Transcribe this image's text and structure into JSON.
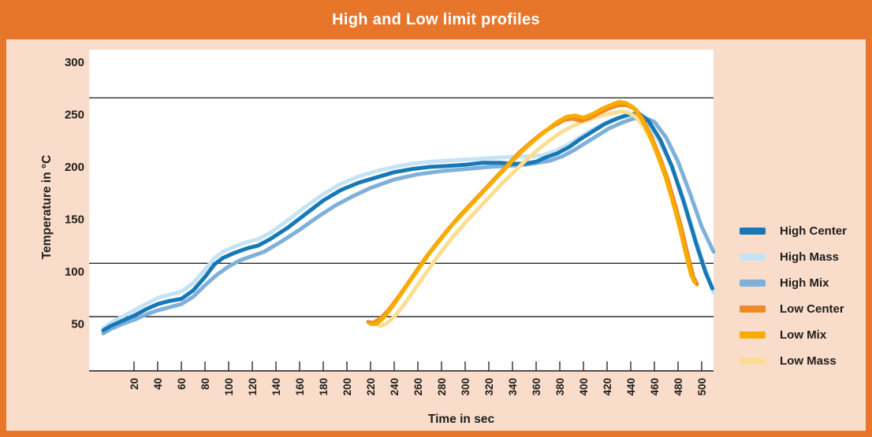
{
  "header": {
    "title": "High and Low limit profiles"
  },
  "colors": {
    "frame_orange": "#e7762b",
    "background_peach": "#fadccb",
    "plot_background": "#ffffff",
    "axis_line": "#1a1a1a",
    "text": "#1d1d1b",
    "title_text": "#ffffff"
  },
  "legend": {
    "items": [
      {
        "label": "High Center",
        "color": "#1778b6"
      },
      {
        "label": "High Mass",
        "color": "#c6e3f4"
      },
      {
        "label": "High Mix",
        "color": "#7fb0d9"
      },
      {
        "label": "Low Center",
        "color": "#f08a25"
      },
      {
        "label": "Low Mix",
        "color": "#f8ac00"
      },
      {
        "label": "Low Mass",
        "color": "#fbde92"
      }
    ]
  },
  "chart_data": {
    "type": "line",
    "title": "High and Low limit profiles",
    "xlabel": "Time in sec",
    "ylabel": "Temperature in °C",
    "x_ticks": [
      20,
      40,
      60,
      80,
      100,
      120,
      140,
      160,
      180,
      200,
      220,
      240,
      260,
      280,
      300,
      320,
      340,
      360,
      380,
      400,
      420,
      440,
      460,
      480,
      500
    ],
    "y_ticks": [
      50,
      100,
      150,
      200,
      250,
      300
    ],
    "xlim": [
      -18,
      510
    ],
    "ylim": [
      5,
      312
    ],
    "grid": "off",
    "legend_position": "right",
    "limit_lines": [
      266,
      108,
      57
    ],
    "series": [
      {
        "name": "High Mass",
        "color": "#c6e3f4",
        "points": [
          [
            -6,
            46
          ],
          [
            0,
            51
          ],
          [
            10,
            57
          ],
          [
            20,
            63
          ],
          [
            30,
            69
          ],
          [
            40,
            75
          ],
          [
            50,
            78
          ],
          [
            60,
            81
          ],
          [
            70,
            89
          ],
          [
            80,
            102
          ],
          [
            88,
            113
          ],
          [
            95,
            119
          ],
          [
            105,
            124
          ],
          [
            115,
            128
          ],
          [
            125,
            131
          ],
          [
            135,
            137
          ],
          [
            150,
            149
          ],
          [
            165,
            162
          ],
          [
            180,
            174
          ],
          [
            195,
            184
          ],
          [
            210,
            191
          ],
          [
            225,
            196
          ],
          [
            240,
            200
          ],
          [
            255,
            203
          ],
          [
            270,
            205
          ],
          [
            285,
            206
          ],
          [
            300,
            207
          ],
          [
            315,
            208
          ],
          [
            330,
            209
          ],
          [
            345,
            210
          ],
          [
            355,
            210
          ],
          [
            365,
            211
          ],
          [
            375,
            215
          ],
          [
            385,
            220
          ],
          [
            395,
            227
          ],
          [
            405,
            234
          ],
          [
            415,
            240
          ],
          [
            425,
            245
          ],
          [
            435,
            248
          ],
          [
            443,
            249
          ],
          [
            452,
            243
          ],
          [
            462,
            228
          ],
          [
            472,
            207
          ],
          [
            482,
            178
          ],
          [
            492,
            142
          ],
          [
            502,
            106
          ],
          [
            510,
            80
          ]
        ]
      },
      {
        "name": "High Mix",
        "color": "#7fb0d9",
        "points": [
          [
            -6,
            41
          ],
          [
            0,
            45
          ],
          [
            10,
            50
          ],
          [
            20,
            54
          ],
          [
            30,
            59
          ],
          [
            40,
            63
          ],
          [
            50,
            66
          ],
          [
            60,
            69
          ],
          [
            70,
            76
          ],
          [
            80,
            87
          ],
          [
            90,
            97
          ],
          [
            100,
            105
          ],
          [
            110,
            111
          ],
          [
            120,
            115
          ],
          [
            130,
            119
          ],
          [
            145,
            129
          ],
          [
            160,
            140
          ],
          [
            175,
            152
          ],
          [
            190,
            163
          ],
          [
            205,
            172
          ],
          [
            220,
            180
          ],
          [
            240,
            188
          ],
          [
            260,
            193
          ],
          [
            280,
            196
          ],
          [
            300,
            198
          ],
          [
            320,
            200
          ],
          [
            335,
            201
          ],
          [
            350,
            202
          ],
          [
            362,
            204
          ],
          [
            372,
            206
          ],
          [
            382,
            210
          ],
          [
            392,
            216
          ],
          [
            402,
            223
          ],
          [
            412,
            230
          ],
          [
            422,
            237
          ],
          [
            432,
            242
          ],
          [
            442,
            246
          ],
          [
            452,
            247
          ],
          [
            460,
            243
          ],
          [
            470,
            228
          ],
          [
            480,
            205
          ],
          [
            490,
            175
          ],
          [
            500,
            143
          ],
          [
            510,
            119
          ]
        ]
      },
      {
        "name": "High Center",
        "color": "#1778b6",
        "points": [
          [
            -6,
            44
          ],
          [
            0,
            48
          ],
          [
            10,
            53
          ],
          [
            20,
            58
          ],
          [
            30,
            64
          ],
          [
            40,
            69
          ],
          [
            50,
            72
          ],
          [
            60,
            74
          ],
          [
            70,
            82
          ],
          [
            80,
            95
          ],
          [
            88,
            107
          ],
          [
            95,
            113
          ],
          [
            105,
            118
          ],
          [
            115,
            122
          ],
          [
            125,
            125
          ],
          [
            135,
            131
          ],
          [
            150,
            142
          ],
          [
            165,
            155
          ],
          [
            180,
            168
          ],
          [
            195,
            178
          ],
          [
            210,
            185
          ],
          [
            225,
            190
          ],
          [
            240,
            195
          ],
          [
            255,
            198
          ],
          [
            270,
            200
          ],
          [
            285,
            201
          ],
          [
            300,
            202
          ],
          [
            315,
            204
          ],
          [
            330,
            204
          ],
          [
            340,
            203
          ],
          [
            350,
            203
          ],
          [
            360,
            205
          ],
          [
            368,
            209
          ],
          [
            378,
            213
          ],
          [
            388,
            219
          ],
          [
            398,
            227
          ],
          [
            408,
            234
          ],
          [
            418,
            241
          ],
          [
            428,
            246
          ],
          [
            438,
            250
          ],
          [
            447,
            251
          ],
          [
            455,
            244
          ],
          [
            465,
            226
          ],
          [
            475,
            200
          ],
          [
            485,
            166
          ],
          [
            495,
            128
          ],
          [
            503,
            100
          ],
          [
            509,
            84
          ]
        ]
      },
      {
        "name": "Low Mass",
        "color": "#fbde92",
        "points": [
          [
            228,
            48
          ],
          [
            233,
            50
          ],
          [
            240,
            57
          ],
          [
            248,
            68
          ],
          [
            256,
            81
          ],
          [
            264,
            94
          ],
          [
            272,
            107
          ],
          [
            281,
            121
          ],
          [
            291,
            135
          ],
          [
            301,
            148
          ],
          [
            311,
            160
          ],
          [
            321,
            172
          ],
          [
            331,
            184
          ],
          [
            341,
            195
          ],
          [
            351,
            206
          ],
          [
            361,
            216
          ],
          [
            371,
            225
          ],
          [
            381,
            233
          ],
          [
            391,
            239
          ],
          [
            399,
            243
          ],
          [
            407,
            246
          ],
          [
            415,
            249
          ],
          [
            423,
            251
          ],
          [
            431,
            253
          ],
          [
            438,
            252
          ],
          [
            444,
            248
          ],
          [
            450,
            240
          ],
          [
            457,
            226
          ],
          [
            464,
            207
          ],
          [
            471,
            185
          ],
          [
            477,
            162
          ],
          [
            483,
            137
          ],
          [
            488,
            114
          ],
          [
            492,
            97
          ]
        ]
      },
      {
        "name": "Low Center",
        "color": "#f08a25",
        "points": [
          [
            218,
            52
          ],
          [
            222,
            51
          ],
          [
            228,
            55
          ],
          [
            235,
            63
          ],
          [
            243,
            75
          ],
          [
            251,
            88
          ],
          [
            259,
            101
          ],
          [
            267,
            114
          ],
          [
            276,
            127
          ],
          [
            286,
            141
          ],
          [
            296,
            154
          ],
          [
            306,
            166
          ],
          [
            316,
            178
          ],
          [
            326,
            190
          ],
          [
            336,
            202
          ],
          [
            346,
            214
          ],
          [
            356,
            224
          ],
          [
            366,
            233
          ],
          [
            376,
            240
          ],
          [
            384,
            245
          ],
          [
            391,
            246
          ],
          [
            398,
            244
          ],
          [
            406,
            247
          ],
          [
            414,
            252
          ],
          [
            422,
            256
          ],
          [
            430,
            259
          ],
          [
            437,
            259
          ],
          [
            444,
            255
          ],
          [
            450,
            246
          ],
          [
            457,
            230
          ],
          [
            464,
            211
          ],
          [
            471,
            189
          ],
          [
            477,
            166
          ],
          [
            483,
            141
          ],
          [
            488,
            117
          ],
          [
            493,
            95
          ],
          [
            496,
            88
          ]
        ]
      },
      {
        "name": "Low Mix",
        "color": "#f8ac00",
        "points": [
          [
            220,
            50
          ],
          [
            225,
            50
          ],
          [
            231,
            56
          ],
          [
            238,
            66
          ],
          [
            246,
            79
          ],
          [
            254,
            92
          ],
          [
            262,
            105
          ],
          [
            270,
            118
          ],
          [
            280,
            132
          ],
          [
            290,
            146
          ],
          [
            300,
            158
          ],
          [
            310,
            170
          ],
          [
            320,
            182
          ],
          [
            330,
            194
          ],
          [
            340,
            206
          ],
          [
            350,
            217
          ],
          [
            360,
            227
          ],
          [
            370,
            236
          ],
          [
            378,
            243
          ],
          [
            386,
            248
          ],
          [
            393,
            249
          ],
          [
            400,
            247
          ],
          [
            407,
            250
          ],
          [
            415,
            255
          ],
          [
            423,
            259
          ],
          [
            430,
            262
          ],
          [
            436,
            261
          ],
          [
            442,
            257
          ],
          [
            448,
            248
          ],
          [
            455,
            233
          ],
          [
            462,
            214
          ],
          [
            469,
            192
          ],
          [
            475,
            169
          ],
          [
            481,
            144
          ],
          [
            486,
            120
          ],
          [
            491,
            97
          ],
          [
            494,
            90
          ]
        ]
      }
    ]
  }
}
